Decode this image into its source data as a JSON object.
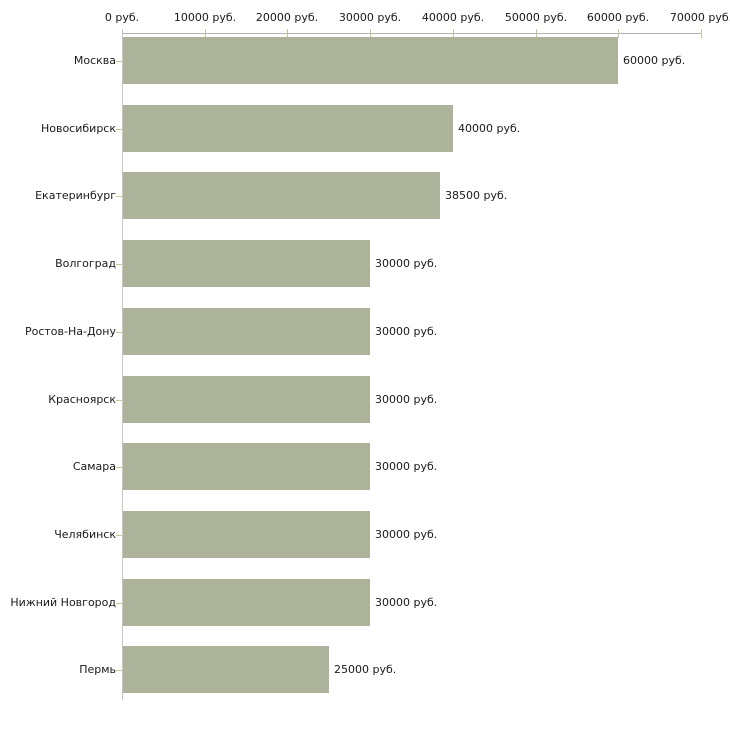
{
  "chart_data": {
    "type": "bar",
    "orientation": "horizontal",
    "title": "",
    "xlabel": "",
    "ylabel": "",
    "grid": false,
    "legend": false,
    "categories": [
      "Москва",
      "Новосибирск",
      "Екатеринбург",
      "Волгоград",
      "Ростов-На-Дону",
      "Красноярск",
      "Самара",
      "Челябинск",
      "Нижний Новгород",
      "Пермь"
    ],
    "values": [
      60000,
      40000,
      38500,
      30000,
      30000,
      30000,
      30000,
      30000,
      30000,
      25000
    ],
    "value_labels": [
      "60000 руб.",
      "40000 руб.",
      "38500 руб.",
      "30000 руб.",
      "30000 руб.",
      "30000 руб.",
      "30000 руб.",
      "30000 руб.",
      "30000 руб.",
      "25000 руб."
    ],
    "x_axis": {
      "position": "top",
      "range": [
        0,
        70000
      ],
      "ticks": [
        0,
        10000,
        20000,
        30000,
        40000,
        50000,
        60000,
        70000
      ],
      "tick_labels": [
        "0 руб.",
        "10000 руб.",
        "20000 руб.",
        "30000 руб.",
        "40000 руб.",
        "50000 руб.",
        "60000 руб.",
        "70000 руб."
      ]
    }
  },
  "colors": {
    "background": "#ffffff",
    "bar_fill": "#adb39a",
    "x_axis_line": "#b2b2b2",
    "y_axis_line": "#c6c6c6",
    "tick_mark": "#c6c69c",
    "text": "#1a1a1a"
  }
}
